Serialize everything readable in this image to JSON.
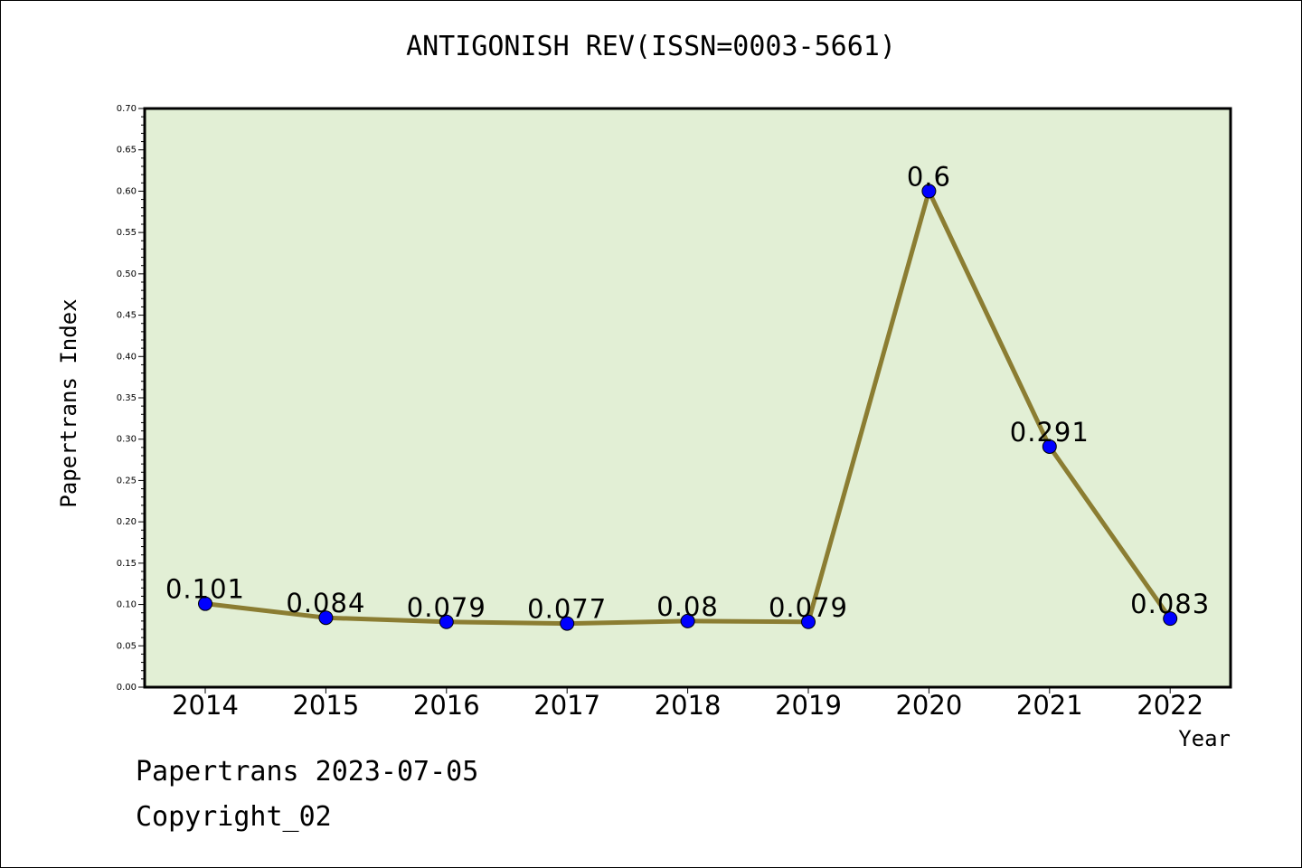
{
  "chart_data": {
    "type": "line",
    "title": "ANTIGONISH REV(ISSN=0003-5661)",
    "xlabel": "Year",
    "ylabel": "Papertrans Index",
    "categories": [
      "2014",
      "2015",
      "2016",
      "2017",
      "2018",
      "2019",
      "2020",
      "2021",
      "2022"
    ],
    "series": [
      {
        "values": [
          0.101,
          0.084,
          0.079,
          0.077,
          0.08,
          0.079,
          0.6,
          0.291,
          0.083
        ],
        "labels": [
          "0.101",
          "0.084",
          "0.079",
          "0.077",
          "0.08",
          "0.079",
          "0.6",
          "0.291",
          "0.083"
        ],
        "line_color": "#8b7d32",
        "marker_color": "#0000ff"
      }
    ],
    "ylim": [
      0,
      0.7
    ],
    "yticks": [
      "0.00",
      "0.05",
      "0.10",
      "0.15",
      "0.20",
      "0.25",
      "0.30",
      "0.35",
      "0.40",
      "0.45",
      "0.50",
      "0.55",
      "0.60",
      "0.65",
      "0.70"
    ],
    "grid": false,
    "plot_background": "#e2efd5"
  },
  "footer": {
    "date_line": "Papertrans 2023-07-05",
    "copyright": "Copyright_02"
  }
}
